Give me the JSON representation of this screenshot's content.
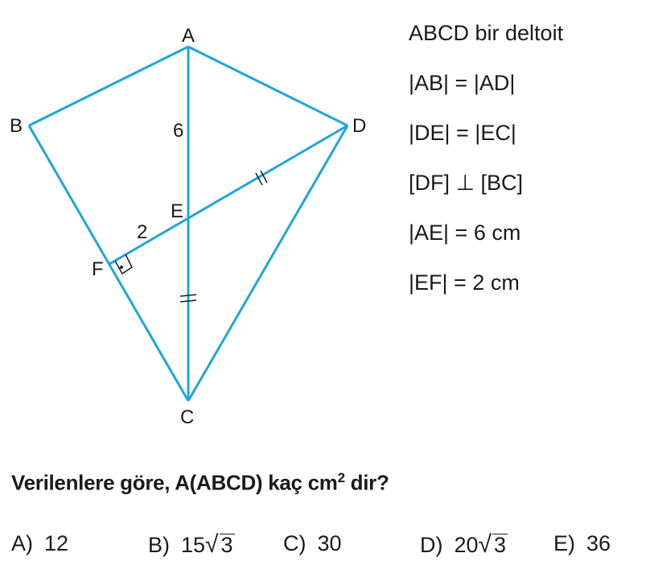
{
  "figure": {
    "line_color": "#1ea5dd",
    "points": {
      "A": "A",
      "B": "B",
      "C": "C",
      "D": "D",
      "E": "E",
      "F": "F"
    },
    "labels": {
      "ae": "6",
      "ef": "2"
    }
  },
  "givens": [
    "ABCD bir deltoit",
    "|AB| = |AD|",
    "|DE| = |EC|",
    "[DF] ⊥ [BC]",
    "|AE| = 6 cm",
    "|EF| = 2 cm"
  ],
  "question": {
    "text": "Verilenlere göre, A(ABCD) kaç cm",
    "sup": "2",
    "tail": " dir?"
  },
  "options": [
    {
      "letter": "A)",
      "value": "12"
    },
    {
      "letter": "B)",
      "value": "15",
      "radicand": "3"
    },
    {
      "letter": "C)",
      "value": "30"
    },
    {
      "letter": "D)",
      "value": "20",
      "radicand": "3"
    },
    {
      "letter": "E)",
      "value": "36"
    }
  ]
}
